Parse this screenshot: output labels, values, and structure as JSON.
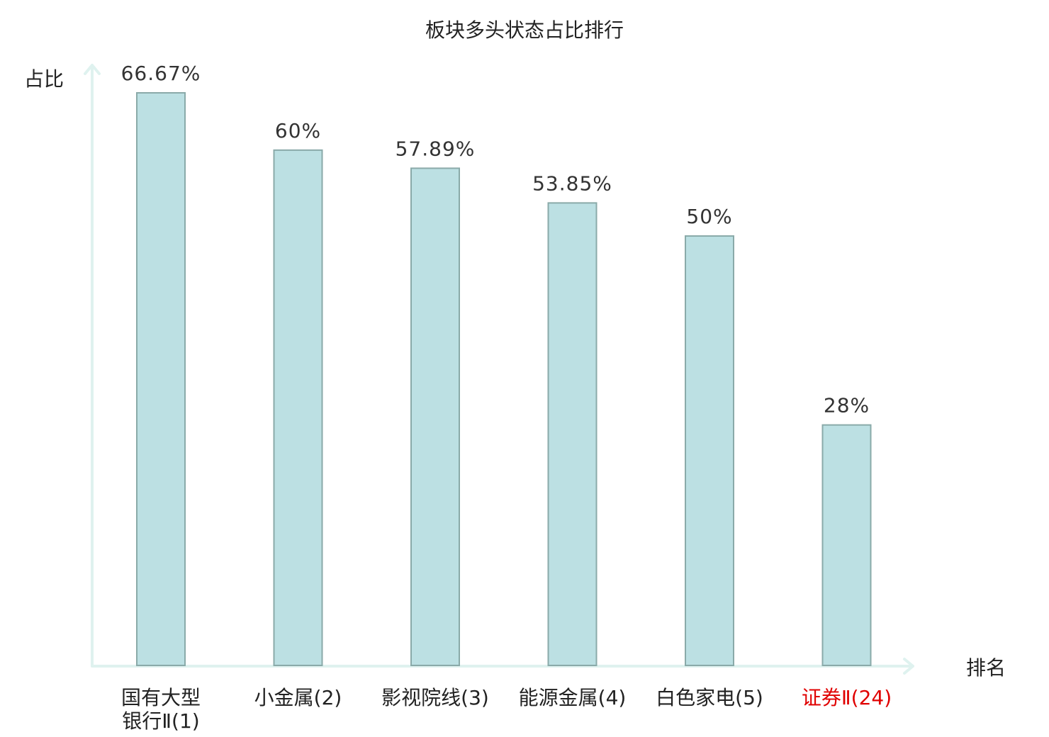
{
  "chart_data": {
    "type": "bar",
    "title": "板块多头状态占比排行",
    "ylabel": "占比",
    "xlabel": "排名",
    "ylim": [
      0,
      70
    ],
    "grid": false,
    "legend": "none",
    "categories": [
      [
        "国有大型",
        "银行Ⅱ(1)"
      ],
      [
        "小金属(2)"
      ],
      [
        "影视院线(3)"
      ],
      [
        "能源金属(4)"
      ],
      [
        "白色家电(5)"
      ],
      [
        "证券Ⅱ(24)"
      ]
    ],
    "values": [
      66.67,
      60,
      57.89,
      53.85,
      50,
      28
    ],
    "value_labels": [
      "66.67%",
      "60%",
      "57.89%",
      "53.85%",
      "50%",
      "28%"
    ],
    "highlight_index": 5,
    "colors": {
      "bar_fill": "#bce0e3",
      "bar_stroke": "#8aaaa9",
      "axis": "#dff2ef",
      "highlight_text": "#e00000"
    }
  }
}
